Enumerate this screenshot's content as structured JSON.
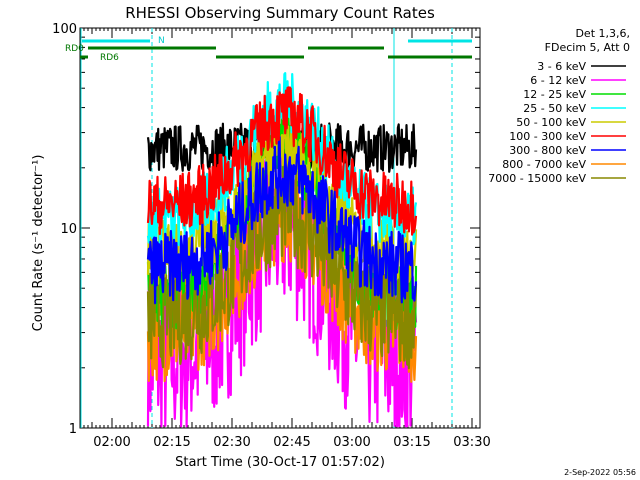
{
  "chart_data": {
    "type": "line",
    "title": "RHESSI Observing Summary Count Rates",
    "xlabel": "Start Time (30-Oct-17 01:57:02)",
    "ylabel": "Count Rate (s⁻¹ detector⁻¹)",
    "yscale": "log",
    "ylim": [
      1,
      100
    ],
    "xlim_minutes_after_start": [
      -5,
      95
    ],
    "x_ticks": [
      "02:00",
      "02:15",
      "02:30",
      "02:45",
      "03:00",
      "03:15",
      "03:30"
    ],
    "y_ticks": [
      "1",
      "10",
      "100"
    ],
    "legend_header": [
      "Det 1,3,6,",
      "FDecim 5, Att 0"
    ],
    "legend_position": "right",
    "date_stamp": "2-Sep-2022 05:56",
    "flag_labels": [
      "RD0",
      "RD6",
      "N"
    ],
    "data_window_minutes": [
      12,
      79
    ],
    "peak_minute": 46,
    "series": [
      {
        "name": "3 - 6 keV",
        "color": "#000000",
        "baseline": 25,
        "peak": 26
      },
      {
        "name": "6 - 12 keV",
        "color": "#ff00ff",
        "baseline": 2.2,
        "peak": 10
      },
      {
        "name": "12 - 25 keV",
        "color": "#00dd00",
        "baseline": 4.5,
        "peak": 26
      },
      {
        "name": "25 - 50 keV",
        "color": "#00ffff",
        "baseline": 11,
        "peak": 42
      },
      {
        "name": "50 - 100 keV",
        "color": "#cccc00",
        "baseline": 7.5,
        "peak": 24
      },
      {
        "name": "100 - 300 keV",
        "color": "#ff0000",
        "baseline": 13,
        "peak": 37
      },
      {
        "name": "300 - 800 keV",
        "color": "#0000ff",
        "baseline": 6.3,
        "peak": 19
      },
      {
        "name": "800 - 7000 keV",
        "color": "#ff8800",
        "baseline": 3.0,
        "peak": 12
      },
      {
        "name": "7000 - 15000 keV",
        "color": "#888800",
        "baseline": 3.5,
        "peak": 12
      }
    ]
  }
}
